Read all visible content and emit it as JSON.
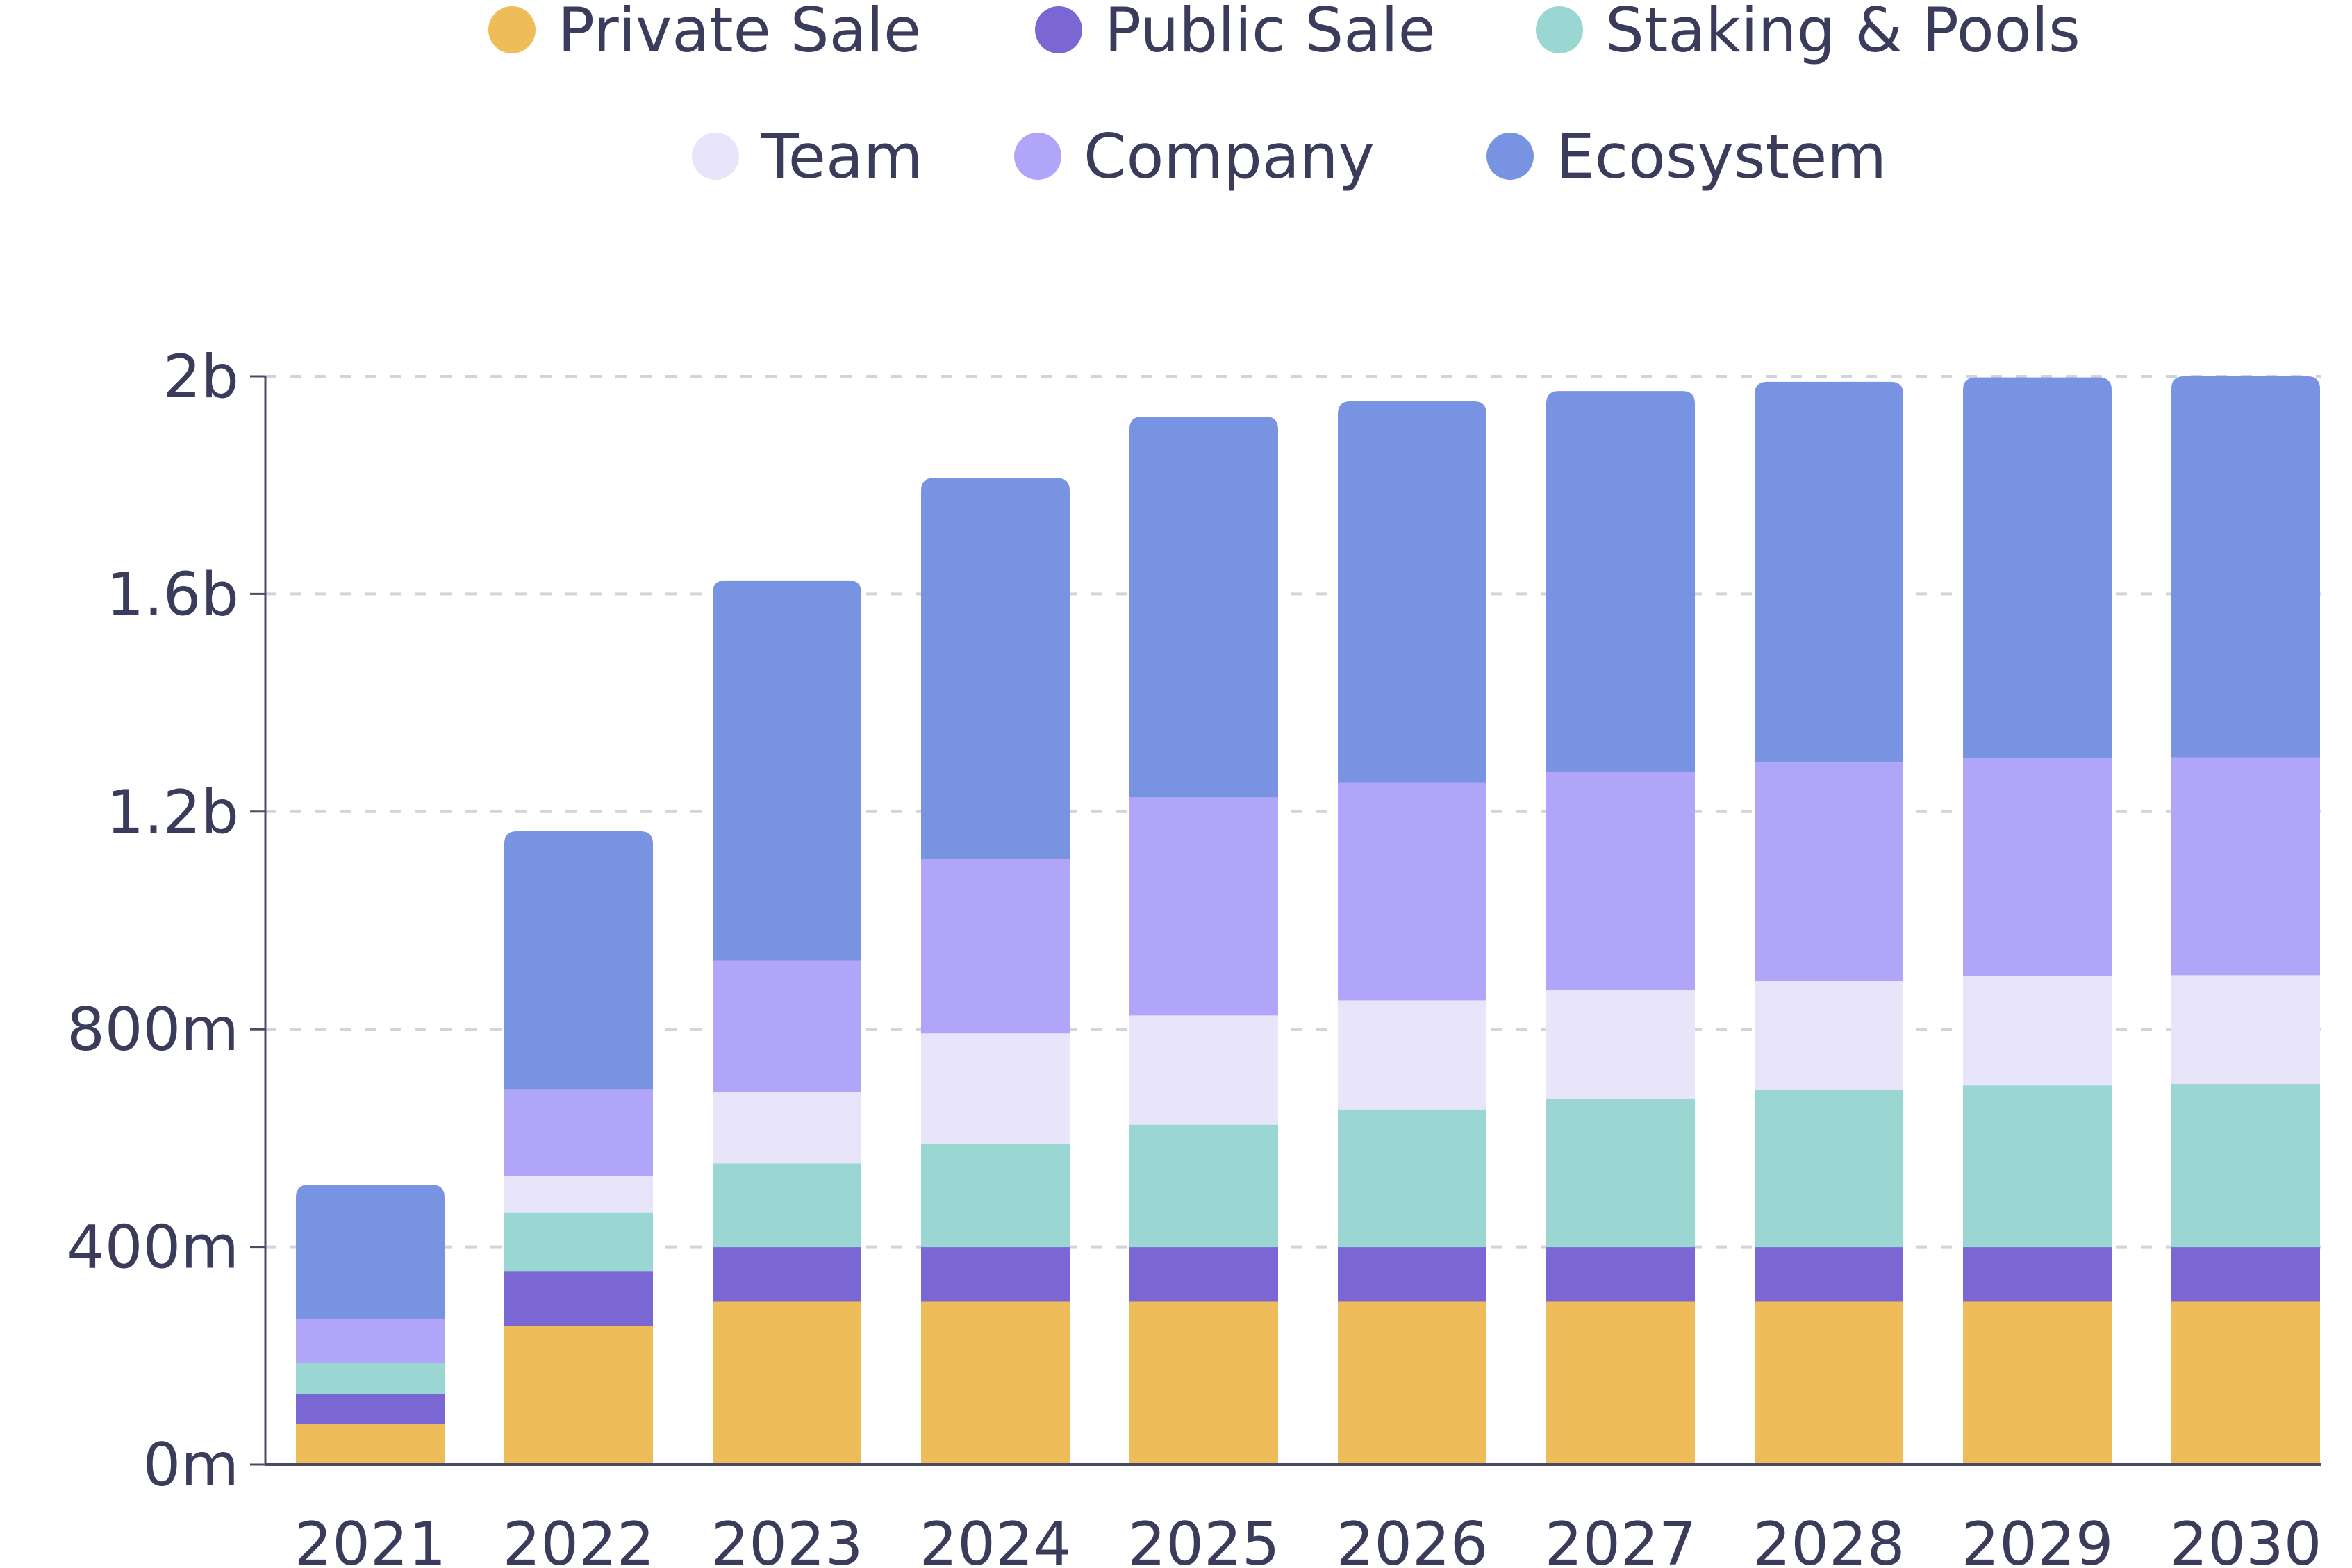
{
  "chart_data": {
    "type": "bar",
    "stacked": true,
    "title": "",
    "xlabel": "",
    "ylabel": "",
    "categories": [
      "2021",
      "2022",
      "2023",
      "2024",
      "2025",
      "2026",
      "2027",
      "2028",
      "2029",
      "2030"
    ],
    "ylim": [
      0,
      2000000000
    ],
    "yticks": [
      0,
      400000000,
      800000000,
      1200000000,
      1600000000,
      2000000000
    ],
    "ytick_labels": [
      "0m",
      "400m",
      "800m",
      "1.2b",
      "1.6b",
      "2b"
    ],
    "grid": "horizontal dashed",
    "legend_position": "top",
    "series": [
      {
        "name": "Private Sale",
        "color": "#EEBD5A",
        "values": [
          75000000,
          255000000,
          300000000,
          300000000,
          300000000,
          300000000,
          300000000,
          300000000,
          300000000,
          300000000
        ]
      },
      {
        "name": "Public Sale",
        "color": "#7A67D4",
        "values": [
          55000000,
          100000000,
          100000000,
          100000000,
          100000000,
          100000000,
          100000000,
          100000000,
          100000000,
          100000000
        ]
      },
      {
        "name": "Staking & Pools",
        "color": "#9AD7D2",
        "values": [
          57000000,
          108000000,
          154000000,
          190000000,
          225000000,
          253000000,
          272000000,
          289000000,
          297000000,
          300000000
        ]
      },
      {
        "name": "Team",
        "color": "#E8E5FB",
        "values": [
          0,
          68000000,
          132000000,
          203000000,
          201000000,
          201000000,
          201000000,
          201000000,
          201000000,
          200000000
        ]
      },
      {
        "name": "Company",
        "color": "#B0A5F8",
        "values": [
          80000000,
          159000000,
          240000000,
          320000000,
          400000000,
          400000000,
          400000000,
          400000000,
          400000000,
          400000000
        ]
      },
      {
        "name": "Ecosystem",
        "color": "#7893E2",
        "values": [
          247000000,
          474000000,
          699000000,
          700000000,
          700000000,
          700000000,
          700000000,
          700000000,
          700000000,
          700000000
        ]
      }
    ]
  }
}
